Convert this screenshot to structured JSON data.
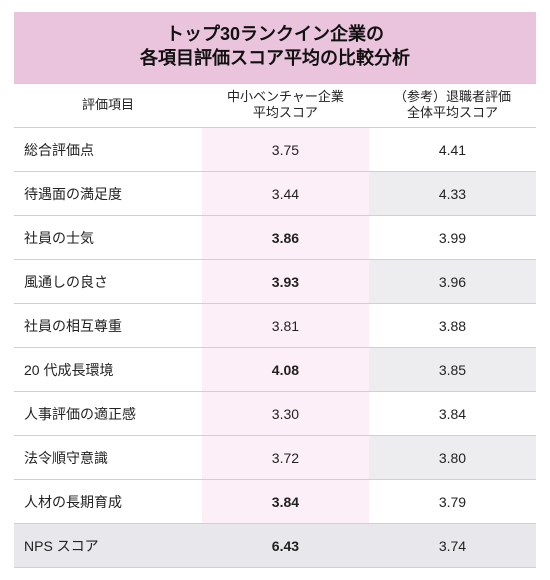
{
  "title_line1": "トップ30ランクイン企業の",
  "title_line2": "各項目評価スコア平均の比較分析",
  "columns": [
    "評価項目",
    "中小ベンチャー企業\n平均スコア",
    "（参考）退職者評価\n全体平均スコア"
  ],
  "rows": [
    {
      "label": "総合評価点",
      "c1": "3.75",
      "c2": "4.41",
      "c1_bold": false,
      "c2_bold": false
    },
    {
      "label": "待遇面の満足度",
      "c1": "3.44",
      "c2": "4.33",
      "c1_bold": false,
      "c2_bold": false
    },
    {
      "label": "社員の士気",
      "c1": "3.86",
      "c2": "3.99",
      "c1_bold": true,
      "c2_bold": false
    },
    {
      "label": "風通しの良さ",
      "c1": "3.93",
      "c2": "3.96",
      "c1_bold": true,
      "c2_bold": false
    },
    {
      "label": "社員の相互尊重",
      "c1": "3.81",
      "c2": "3.88",
      "c1_bold": false,
      "c2_bold": false
    },
    {
      "label": "20 代成長環境",
      "c1": "4.08",
      "c2": "3.85",
      "c1_bold": true,
      "c2_bold": false
    },
    {
      "label": "人事評価の適正感",
      "c1": "3.30",
      "c2": "3.84",
      "c1_bold": false,
      "c2_bold": false
    },
    {
      "label": "法令順守意識",
      "c1": "3.72",
      "c2": "3.80",
      "c1_bold": false,
      "c2_bold": false
    },
    {
      "label": "人材の長期育成",
      "c1": "3.84",
      "c2": "3.79",
      "c1_bold": true,
      "c2_bold": false
    },
    {
      "label": "NPS スコア",
      "c1": "6.43",
      "c2": "3.74",
      "c1_bold": true,
      "c2_bold": false
    }
  ],
  "style": {
    "title_bg": "#eac4dd",
    "title_color": "#111111",
    "title_fontsize": 18,
    "header_fontsize": 13,
    "body_fontsize": 14,
    "border_color": "#cfcfd4",
    "row_bg": "#ffffff",
    "highlight_col_bg": "#fdeff7",
    "last_row_bg": "#e8e8ec",
    "alt_col3_bg": "#ededf0",
    "text_color": "#222222"
  }
}
